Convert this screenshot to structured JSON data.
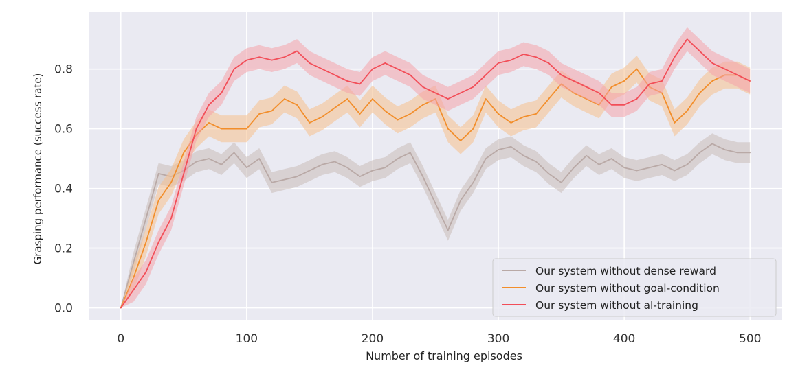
{
  "chart_data": {
    "type": "line",
    "title": "",
    "xlabel": "Number of training episodes",
    "ylabel": "Grasping performance (success rate)",
    "xlim": [
      -25,
      525
    ],
    "ylim": [
      -0.04,
      0.99
    ],
    "xticks": [
      0,
      100,
      200,
      300,
      400,
      500
    ],
    "yticks": [
      0.0,
      0.2,
      0.4,
      0.6,
      0.8
    ],
    "xtick_labels": [
      "0",
      "100",
      "200",
      "300",
      "400",
      "500"
    ],
    "ytick_labels": [
      "0.0",
      "0.2",
      "0.4",
      "0.6",
      "0.8"
    ],
    "grid": true,
    "background": "#eaeaf2",
    "legend_position": "lower-right",
    "series": [
      {
        "name": "Our system without dense reward",
        "color": "#b9a9a6",
        "band_color": "#c9bcb8",
        "band_width": 0.035,
        "x": [
          0,
          10,
          20,
          30,
          40,
          50,
          60,
          70,
          80,
          90,
          100,
          110,
          120,
          130,
          140,
          150,
          160,
          170,
          180,
          190,
          200,
          210,
          220,
          230,
          240,
          250,
          260,
          270,
          280,
          290,
          300,
          310,
          320,
          330,
          340,
          350,
          360,
          370,
          380,
          390,
          400,
          410,
          420,
          430,
          440,
          450,
          460,
          470,
          480,
          490,
          500
        ],
        "y": [
          0.0,
          0.15,
          0.3,
          0.45,
          0.44,
          0.46,
          0.49,
          0.5,
          0.48,
          0.52,
          0.47,
          0.5,
          0.42,
          0.43,
          0.44,
          0.46,
          0.48,
          0.49,
          0.47,
          0.44,
          0.46,
          0.47,
          0.5,
          0.52,
          0.44,
          0.35,
          0.26,
          0.36,
          0.42,
          0.5,
          0.53,
          0.54,
          0.51,
          0.49,
          0.45,
          0.42,
          0.47,
          0.51,
          0.48,
          0.5,
          0.47,
          0.46,
          0.47,
          0.48,
          0.46,
          0.48,
          0.52,
          0.55,
          0.53,
          0.52,
          0.52
        ]
      },
      {
        "name": "Our system without goal-condition",
        "color": "#f28e2b",
        "band_color": "#f5bf8c",
        "band_width": 0.045,
        "x": [
          0,
          10,
          20,
          30,
          40,
          50,
          60,
          70,
          80,
          90,
          100,
          110,
          120,
          130,
          140,
          150,
          160,
          170,
          180,
          190,
          200,
          210,
          220,
          230,
          240,
          250,
          260,
          270,
          280,
          290,
          300,
          310,
          320,
          330,
          340,
          350,
          360,
          370,
          380,
          390,
          400,
          410,
          420,
          430,
          440,
          450,
          460,
          470,
          480,
          490,
          500
        ],
        "y": [
          0.0,
          0.1,
          0.22,
          0.36,
          0.42,
          0.52,
          0.58,
          0.62,
          0.6,
          0.6,
          0.6,
          0.65,
          0.66,
          0.7,
          0.68,
          0.62,
          0.64,
          0.67,
          0.7,
          0.65,
          0.7,
          0.66,
          0.63,
          0.65,
          0.68,
          0.7,
          0.6,
          0.56,
          0.6,
          0.7,
          0.65,
          0.62,
          0.64,
          0.65,
          0.7,
          0.75,
          0.72,
          0.7,
          0.68,
          0.74,
          0.76,
          0.8,
          0.74,
          0.72,
          0.62,
          0.66,
          0.72,
          0.76,
          0.78,
          0.78,
          0.76
        ]
      },
      {
        "name": "Our system without al-training",
        "color": "#f24e58",
        "band_color": "#f4a2aa",
        "band_width": 0.04,
        "x": [
          0,
          10,
          20,
          30,
          40,
          50,
          60,
          70,
          80,
          90,
          100,
          110,
          120,
          130,
          140,
          150,
          160,
          170,
          180,
          190,
          200,
          210,
          220,
          230,
          240,
          250,
          260,
          270,
          280,
          290,
          300,
          310,
          320,
          330,
          340,
          350,
          360,
          370,
          380,
          390,
          400,
          410,
          420,
          430,
          440,
          450,
          460,
          470,
          480,
          490,
          500
        ],
        "y": [
          0.0,
          0.06,
          0.12,
          0.22,
          0.3,
          0.45,
          0.6,
          0.68,
          0.72,
          0.8,
          0.83,
          0.84,
          0.83,
          0.84,
          0.86,
          0.82,
          0.8,
          0.78,
          0.76,
          0.75,
          0.8,
          0.82,
          0.8,
          0.78,
          0.74,
          0.72,
          0.7,
          0.72,
          0.74,
          0.78,
          0.82,
          0.83,
          0.85,
          0.84,
          0.82,
          0.78,
          0.76,
          0.74,
          0.72,
          0.68,
          0.68,
          0.7,
          0.75,
          0.76,
          0.84,
          0.9,
          0.86,
          0.82,
          0.8,
          0.78,
          0.76
        ]
      }
    ]
  }
}
